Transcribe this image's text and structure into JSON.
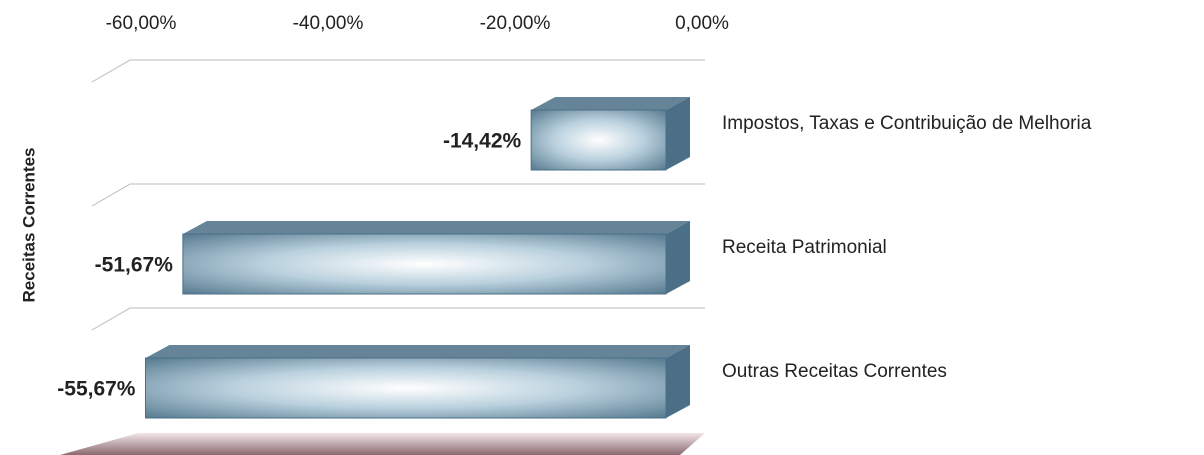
{
  "chart_data": {
    "type": "bar",
    "orientation": "horizontal",
    "y_axis_label": "Receitas Correntes",
    "categories": [
      "Impostos, Taxas e Contribuição de Melhoria",
      "Receita Patrimonial",
      "Outras Receitas Correntes"
    ],
    "values": [
      -14.42,
      -51.67,
      -55.67
    ],
    "value_labels": [
      "-14,42%",
      "-51,67%",
      "-55,67%"
    ],
    "color": "#4a6f86",
    "label_color": "#c00000",
    "xlim": [
      -60,
      0
    ],
    "xticks": [
      {
        "value": -60,
        "label": "-60,00%"
      },
      {
        "value": -40,
        "label": "-40,00%"
      },
      {
        "value": -20,
        "label": "-20,00%"
      },
      {
        "value": 0,
        "label": "0,00%"
      }
    ]
  }
}
